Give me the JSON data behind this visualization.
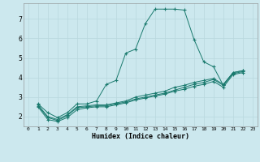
{
  "xlabel": "Humidex (Indice chaleur)",
  "bg_color": "#cce8ee",
  "grid_color": "#b8d8de",
  "line_color": "#1a7a6e",
  "xlim": [
    -0.5,
    23.5
  ],
  "ylim": [
    1.5,
    7.8
  ],
  "yticks": [
    2,
    3,
    4,
    5,
    6,
    7
  ],
  "xticks": [
    0,
    1,
    2,
    3,
    4,
    5,
    6,
    7,
    8,
    9,
    10,
    11,
    12,
    13,
    14,
    15,
    16,
    17,
    18,
    19,
    20,
    21,
    22,
    23
  ],
  "line1_x": [
    1,
    2,
    3,
    4,
    5,
    6,
    7,
    8,
    9,
    10,
    11,
    12,
    13,
    14,
    15,
    16,
    17,
    18,
    19,
    20,
    21,
    22
  ],
  "line1_y": [
    2.65,
    2.2,
    1.95,
    2.2,
    2.65,
    2.65,
    2.8,
    3.65,
    3.85,
    5.25,
    5.45,
    6.75,
    7.5,
    7.5,
    7.5,
    7.45,
    5.95,
    4.8,
    4.55,
    3.6,
    4.25,
    4.35
  ],
  "line2_x": [
    1,
    2,
    3,
    4,
    5,
    6,
    7,
    8,
    9,
    10,
    11,
    12,
    13,
    14,
    15,
    16,
    17,
    18,
    19,
    20,
    21,
    22
  ],
  "line2_y": [
    2.6,
    2.0,
    1.85,
    2.1,
    2.5,
    2.55,
    2.6,
    2.6,
    2.7,
    2.8,
    3.0,
    3.1,
    3.2,
    3.3,
    3.5,
    3.6,
    3.75,
    3.85,
    3.95,
    3.65,
    4.25,
    4.35
  ],
  "line3_x": [
    1,
    2,
    3,
    4,
    5,
    6,
    7,
    8,
    9,
    10,
    11,
    12,
    13,
    14,
    15,
    16,
    17,
    18,
    19,
    20,
    21,
    22
  ],
  "line3_y": [
    2.55,
    1.95,
    1.8,
    2.05,
    2.45,
    2.5,
    2.55,
    2.55,
    2.65,
    2.75,
    2.9,
    3.0,
    3.1,
    3.2,
    3.35,
    3.5,
    3.65,
    3.75,
    3.9,
    3.6,
    4.2,
    4.3
  ],
  "line4_x": [
    1,
    2,
    3,
    4,
    5,
    6,
    7,
    8,
    9,
    10,
    11,
    12,
    13,
    14,
    15,
    16,
    17,
    18,
    19,
    20,
    21,
    22
  ],
  "line4_y": [
    2.5,
    1.85,
    1.75,
    1.95,
    2.35,
    2.45,
    2.5,
    2.5,
    2.6,
    2.7,
    2.85,
    2.95,
    3.05,
    3.15,
    3.3,
    3.4,
    3.55,
    3.65,
    3.8,
    3.5,
    4.15,
    4.25
  ]
}
